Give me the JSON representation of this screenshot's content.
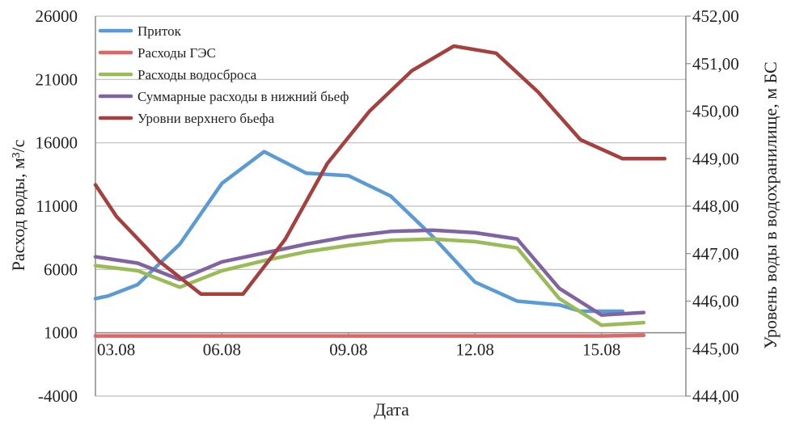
{
  "chart_data": {
    "type": "line",
    "xlabel": "Дата",
    "ylabel_left": "Расход воды, м³/с",
    "ylabel_right": "Уровень воды в водохранилище, м БС",
    "y_left_lim": [
      -4000,
      26000
    ],
    "y_left_ticks": [
      "26000",
      "21000",
      "16000",
      "11000",
      "6000",
      "1000",
      "-4000"
    ],
    "y_left_tick_values": [
      26000,
      21000,
      16000,
      11000,
      6000,
      1000,
      -4000
    ],
    "y_right_lim": [
      444,
      452
    ],
    "y_right_ticks": [
      "452,00",
      "451,00",
      "450,00",
      "449,00",
      "448,00",
      "447,00",
      "446,00",
      "445,00",
      "444,00"
    ],
    "y_right_tick_values": [
      452,
      451,
      450,
      449,
      448,
      447,
      446,
      445,
      444
    ],
    "x_ticks": [
      "03.08",
      "06.08",
      "09.08",
      "12.08",
      "15.08"
    ],
    "x_tick_values": [
      3,
      6,
      9,
      12,
      15
    ],
    "x_lim": [
      3,
      17
    ],
    "grid": "horizontal",
    "legend_position": "top-left",
    "series": [
      {
        "name": "Приток",
        "axis": "left",
        "color": "#5b9bd5",
        "x": [
          3,
          3.3,
          4,
          5,
          6,
          7,
          8,
          8.5,
          9,
          10,
          11,
          12,
          13,
          14,
          14.5,
          15,
          15.5
        ],
        "values": [
          3700,
          3900,
          4800,
          8000,
          12800,
          15300,
          13600,
          13500,
          13400,
          11800,
          8600,
          5000,
          3500,
          3200,
          2700,
          2700,
          2700
        ]
      },
      {
        "name": "Расходы ГЭС",
        "axis": "left",
        "color": "#e06666",
        "x": [
          3,
          4,
          5,
          6,
          7,
          8,
          9,
          10,
          11,
          12,
          13,
          14,
          15,
          16
        ],
        "values": [
          750,
          750,
          750,
          750,
          750,
          750,
          750,
          750,
          750,
          750,
          750,
          750,
          750,
          800
        ]
      },
      {
        "name": "Расходы водосброса",
        "axis": "left",
        "color": "#9bbb59",
        "x": [
          3,
          4,
          5,
          6,
          7,
          8,
          9,
          10,
          11,
          12,
          13,
          14,
          15,
          16
        ],
        "values": [
          6300,
          5900,
          4600,
          5900,
          6700,
          7400,
          7900,
          8300,
          8400,
          8200,
          7700,
          3700,
          1600,
          1800
        ]
      },
      {
        "name": "Суммарные расходы в нижний бьеф",
        "axis": "left",
        "color": "#8064a2",
        "x": [
          3,
          4,
          5,
          6,
          7,
          8,
          9,
          10,
          11,
          12,
          13,
          14,
          15,
          16
        ],
        "values": [
          7000,
          6500,
          5200,
          6600,
          7300,
          8000,
          8600,
          9000,
          9100,
          8900,
          8400,
          4500,
          2400,
          2600
        ]
      },
      {
        "name": "Уровни верхнего бьефа",
        "axis": "right",
        "color": "#a5403e",
        "x": [
          3,
          3.5,
          4.5,
          5.5,
          6,
          6.5,
          7.5,
          8.5,
          9.5,
          10.5,
          11.5,
          12.5,
          13.5,
          14.5,
          15.5,
          16.5
        ],
        "values": [
          448.45,
          447.78,
          446.85,
          446.15,
          446.15,
          446.15,
          447.3,
          448.9,
          450.0,
          450.85,
          451.37,
          451.22,
          450.4,
          449.4,
          449.0,
          449.0
        ]
      }
    ]
  }
}
